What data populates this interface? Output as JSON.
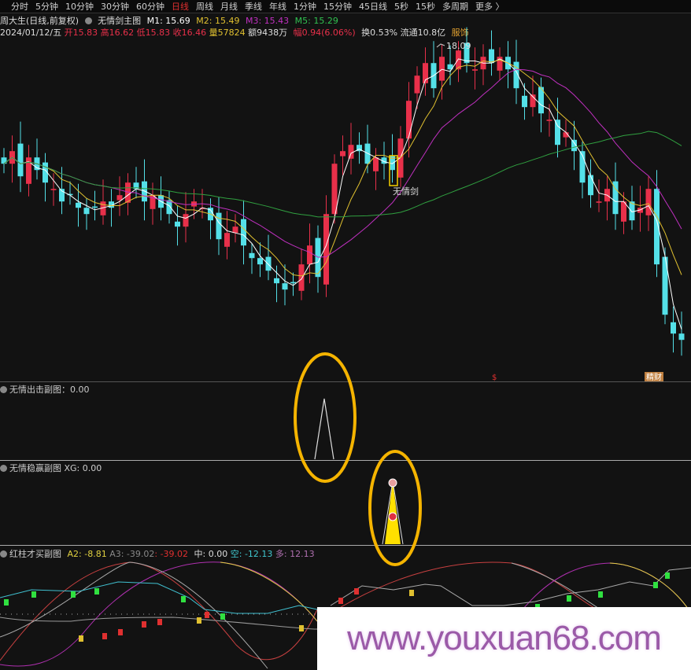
{
  "toolbar": {
    "items": [
      "分时",
      "5分钟",
      "10分钟",
      "30分钟",
      "60分钟",
      "日线",
      "周线",
      "月线",
      "季线",
      "年线",
      "1分钟",
      "15分钟",
      "45日线",
      "5秒",
      "15秒",
      "多周期",
      "更多 〉"
    ],
    "active_index": 5
  },
  "main_header": {
    "stock": "周大生(日线,前复权)",
    "indicator": "无情剑主图",
    "m1": "M1: 15.69",
    "m2": "M2: 15.49",
    "m3": "M3: 15.43",
    "m5": "M5: 15.29"
  },
  "quote": {
    "date": "2024/01/12/五",
    "open": "开15.83",
    "high": "高16.62",
    "low": "低15.83",
    "close": "收16.46",
    "volume": "量57824",
    "amount": "额9438万",
    "change": "幅0.94(6.06%)",
    "turnover": "换0.53%",
    "float": "流通10.8亿",
    "sector": "服饰"
  },
  "chart_labels": {
    "high_price": "18.09",
    "signal": "无情剑",
    "dollar_mark": "$",
    "tag": "精财"
  },
  "panels": {
    "p1": {
      "title": "无情出击副图：0.00"
    },
    "p2": {
      "title": "无情稳赢副图",
      "xg": "XG: 0.00"
    },
    "p3": {
      "title": "红柱才买副图",
      "a2": "A2: -8.81",
      "a3": "A3: -39.02",
      "a3b": ": -39.02",
      "mid": "中: 0.00",
      "kong": "空: -12.13",
      "duo": "多: 12.13"
    }
  },
  "watermark": "www.youxuan68.com",
  "colors": {
    "up": "#e8304a",
    "down": "#54e0e8",
    "m1": "#ffffff",
    "m2": "#e0c030",
    "m3": "#c030c0",
    "m5": "#30a040",
    "highlight": "#f5b400"
  },
  "chart_data": {
    "type": "candlestick",
    "closes": [
      16.2,
      16.4,
      16.0,
      16.3,
      16.1,
      15.9,
      15.8,
      15.6,
      15.7,
      15.5,
      15.4,
      15.5,
      15.6,
      15.5,
      15.7,
      15.9,
      15.8,
      15.6,
      15.7,
      15.5,
      15.4,
      15.2,
      15.4,
      15.6,
      15.5,
      15.3,
      15.0,
      15.1,
      15.2,
      14.9,
      14.7,
      14.6,
      14.5,
      14.3,
      14.2,
      14.3,
      14.6,
      14.9,
      14.4,
      15.4,
      16.2,
      16.4,
      16.5,
      16.4,
      16.2,
      16.3,
      16.2,
      16.1,
      16.6,
      17.2,
      17.6,
      17.8,
      17.4,
      17.9,
      17.7,
      18.0,
      17.8,
      17.7,
      17.9,
      17.8,
      17.9,
      17.7,
      17.4,
      17.1,
      17.3,
      17.0,
      16.9,
      16.5,
      16.7,
      16.4,
      15.9,
      15.7,
      15.6,
      15.8,
      15.4,
      15.6,
      15.3,
      15.5,
      15.8,
      14.6,
      13.8,
      13.5,
      13.4
    ],
    "max_high": 18.09
  }
}
